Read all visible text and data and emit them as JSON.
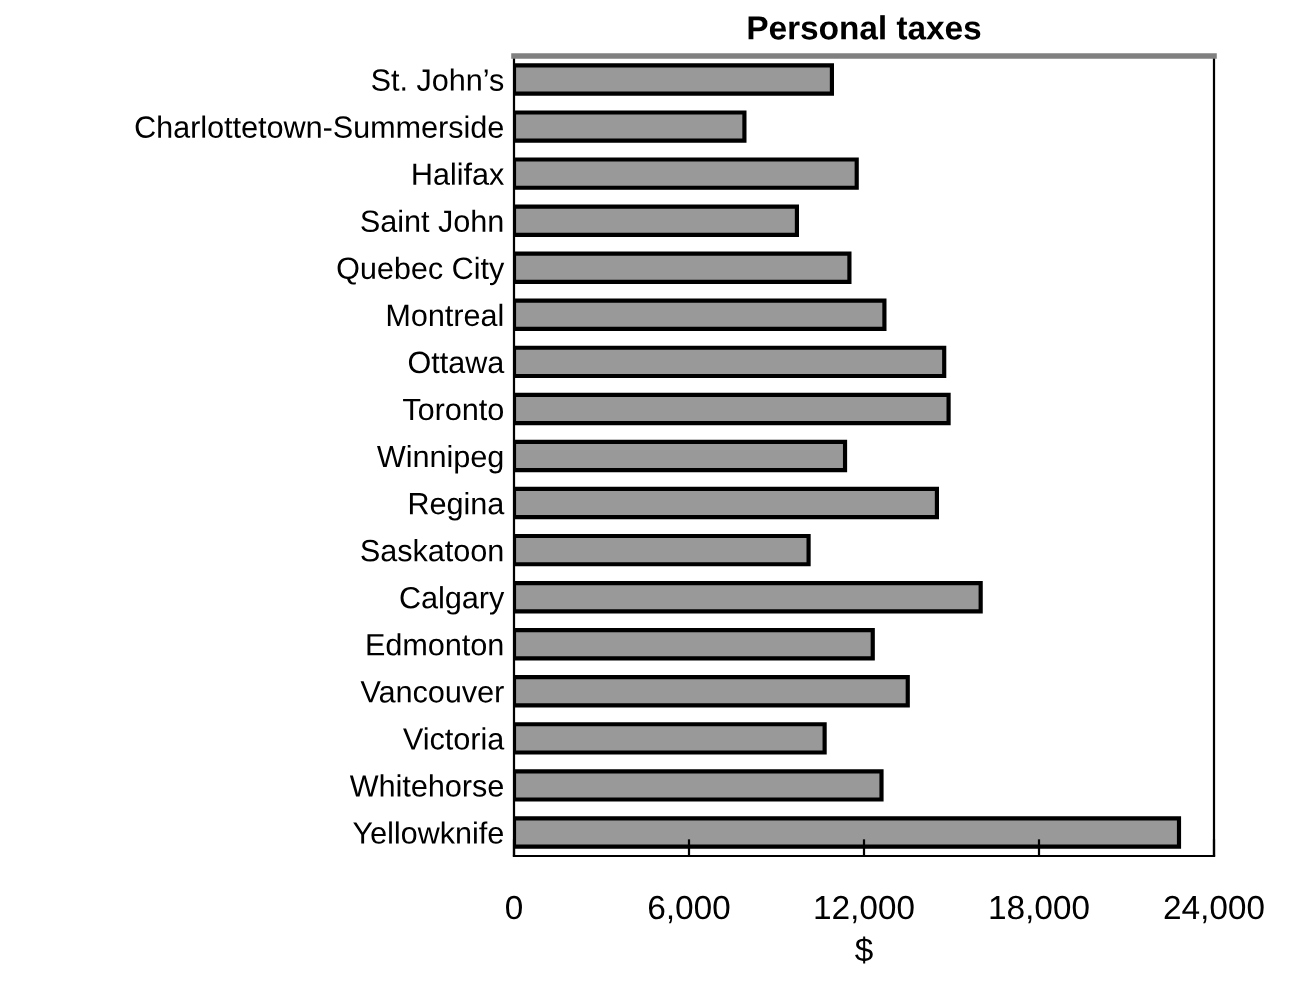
{
  "chart_data": {
    "type": "bar",
    "orientation": "horizontal",
    "title": "Personal taxes",
    "xlabel": "$",
    "categories": [
      "St. John’s",
      "Charlottetown-Summerside",
      "Halifax",
      "Saint John",
      "Quebec City",
      "Montreal",
      "Ottawa",
      "Toronto",
      "Winnipeg",
      "Regina",
      "Saskatoon",
      "Calgary",
      "Edmonton",
      "Vancouver",
      "Victoria",
      "Whitehorse",
      "Yellowknife"
    ],
    "values": [
      10900,
      7900,
      11750,
      9700,
      11500,
      12700,
      14750,
      14900,
      11350,
      14500,
      10100,
      16000,
      12300,
      13500,
      10650,
      12600,
      22800
    ],
    "color": "#999999",
    "xlim": [
      0,
      24000
    ],
    "xticks": [
      {
        "value": 0,
        "label": "0"
      },
      {
        "value": 6000,
        "label": "6,000"
      },
      {
        "value": 12000,
        "label": "12,000"
      },
      {
        "value": 18000,
        "label": "18,000"
      },
      {
        "value": 24000,
        "label": "24,000"
      }
    ],
    "grid": false,
    "legend": false
  }
}
